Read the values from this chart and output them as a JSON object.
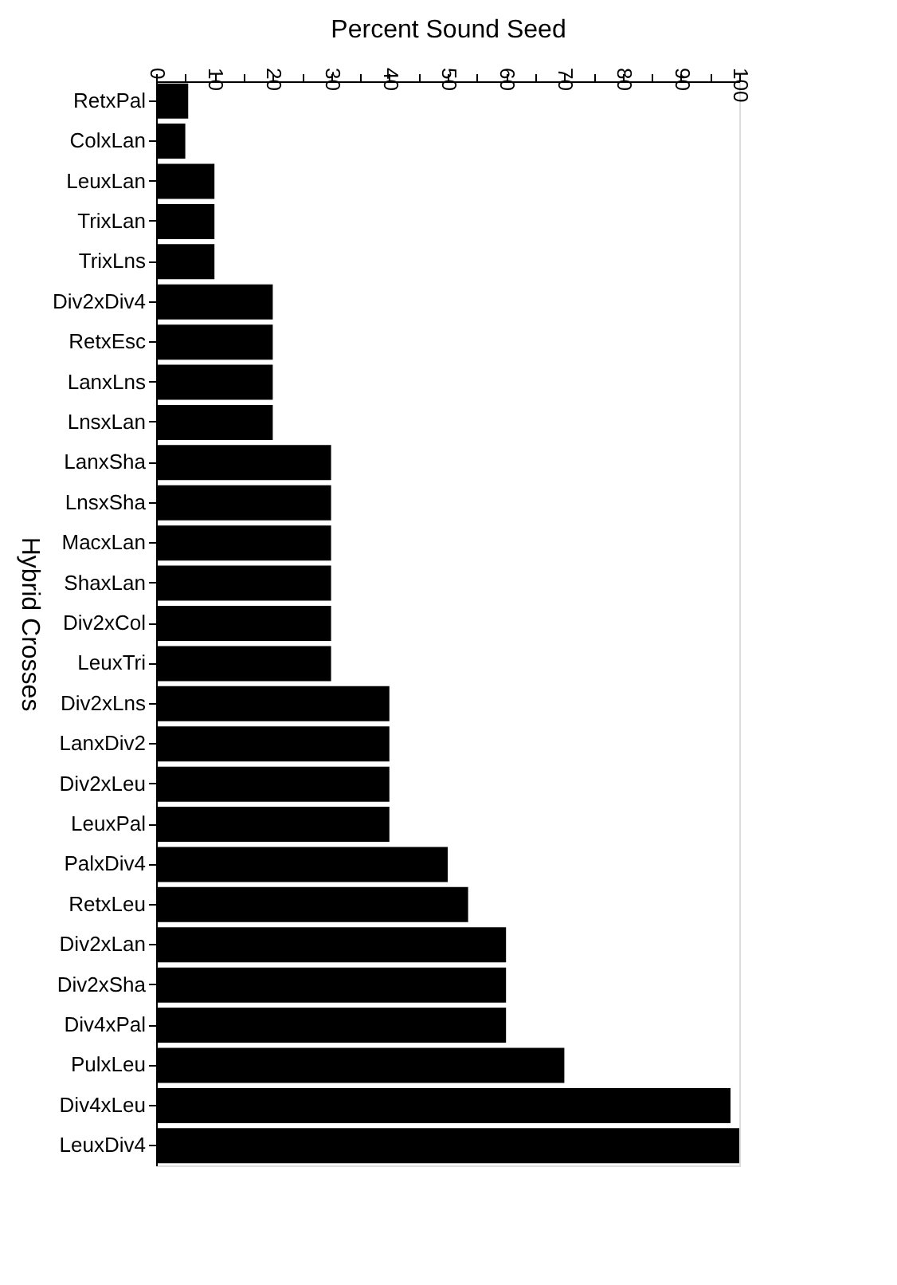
{
  "chart_data": {
    "type": "bar",
    "orientation": "horizontal",
    "xlabel": "Percent Sound Seed",
    "ylabel": "Hybrid Crosses",
    "categories": [
      "RetxPal",
      "ColxLan",
      "LeuxLan",
      "TrixLan",
      "TrixLns",
      "Div2xDiv4",
      "RetxEsc",
      "LanxLns",
      "LnsxLan",
      "LanxSha",
      "LnsxSha",
      "MacxLan",
      "ShaxLan",
      "Div2xCol",
      "LeuxTri",
      "Div2xLns",
      "LanxDiv2",
      "Div2xLeu",
      "LeuxPal",
      "PalxDiv4",
      "RetxLeu",
      "Div2xLan",
      "Div2xSha",
      "Div4xPal",
      "PulxLeu",
      "Div4xLeu",
      "LeuxDiv4"
    ],
    "values": [
      5.5,
      5,
      10,
      10,
      10,
      20,
      20,
      20,
      20,
      30,
      30,
      30,
      30,
      30,
      30,
      40,
      40,
      40,
      40,
      50,
      53.5,
      60,
      60,
      60,
      70,
      98.5,
      100
    ],
    "color": "#000000",
    "xlim": [
      0,
      100
    ],
    "xticks": [
      0,
      {
        "value": 5,
        "label": null
      },
      10,
      {
        "value": 15,
        "label": null
      },
      20,
      {
        "value": 25,
        "label": null
      },
      30,
      {
        "value": 35,
        "label": null
      },
      40,
      {
        "value": 45,
        "label": null
      },
      50,
      {
        "value": 55,
        "label": null
      },
      60,
      {
        "value": 65,
        "label": null
      },
      70,
      {
        "value": 75,
        "label": null
      },
      80,
      {
        "value": 85,
        "label": null
      },
      90,
      {
        "value": 95,
        "label": null
      },
      100
    ],
    "grid": false
  }
}
